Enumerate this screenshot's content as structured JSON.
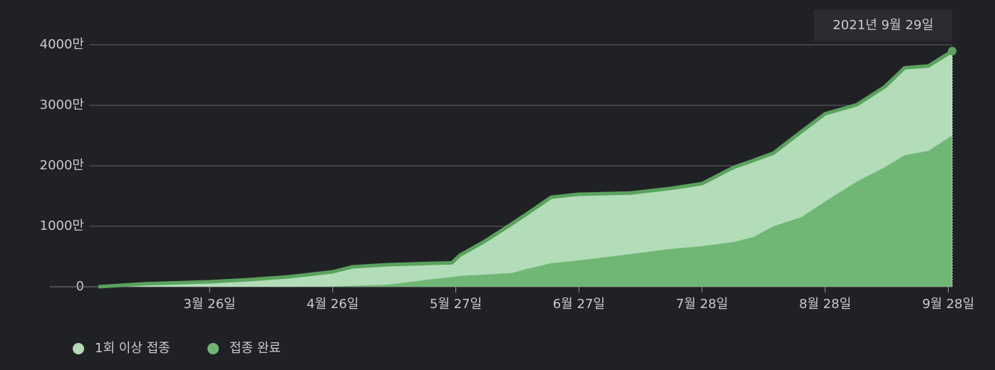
{
  "chart_data": {
    "type": "area",
    "x": [
      "02-26",
      "03-10",
      "03-26",
      "04-05",
      "04-15",
      "04-26",
      "05-01",
      "05-10",
      "05-20",
      "05-26",
      "05-28",
      "06-03",
      "06-10",
      "06-14",
      "06-20",
      "06-27",
      "07-10",
      "07-20",
      "07-28",
      "08-05",
      "08-10",
      "08-15",
      "08-22",
      "08-28",
      "09-05",
      "09-12",
      "09-17",
      "09-23",
      "09-29"
    ],
    "series": [
      {
        "name": "1회 이상 접종",
        "color": "#b3dcb8",
        "line_color": "#5aa35e",
        "values": [
          0,
          50,
          82,
          118,
          165,
          247,
          330,
          365,
          385,
          395,
          520,
          740,
          1035,
          1210,
          1480,
          1530,
          1550,
          1625,
          1705,
          1975,
          2090,
          2210,
          2565,
          2860,
          3010,
          3305,
          3620,
          3650,
          3895
        ]
      },
      {
        "name": "접종 완료",
        "color": "#70b776",
        "values": [
          0,
          0,
          0,
          0,
          0,
          5,
          15,
          35,
          118,
          160,
          180,
          200,
          225,
          295,
          390,
          435,
          540,
          625,
          670,
          740,
          825,
          1000,
          1150,
          1410,
          1740,
          1975,
          2175,
          2245,
          2505
        ]
      }
    ],
    "xlim": [
      "02-26",
      "09-29"
    ],
    "xticks": [
      {
        "value": "03-26",
        "label": "3월 26일"
      },
      {
        "value": "04-26",
        "label": "4월 26일"
      },
      {
        "value": "05-27",
        "label": "5월 27일"
      },
      {
        "value": "06-27",
        "label": "6월 27일"
      },
      {
        "value": "07-28",
        "label": "7월 28일"
      },
      {
        "value": "08-28",
        "label": "8월 28일"
      },
      {
        "value": "09-28",
        "label": "9월 28일"
      }
    ],
    "ylim": [
      0,
      4000
    ],
    "yticks": [
      0,
      {
        "value": 1000,
        "label": "1000만"
      },
      {
        "value": 2000,
        "label": "2000만"
      },
      {
        "value": 3000,
        "label": "3000만"
      },
      {
        "value": 4000,
        "label": "4000만"
      }
    ],
    "grid": true,
    "tooltip": "2021년 9월 29일"
  }
}
